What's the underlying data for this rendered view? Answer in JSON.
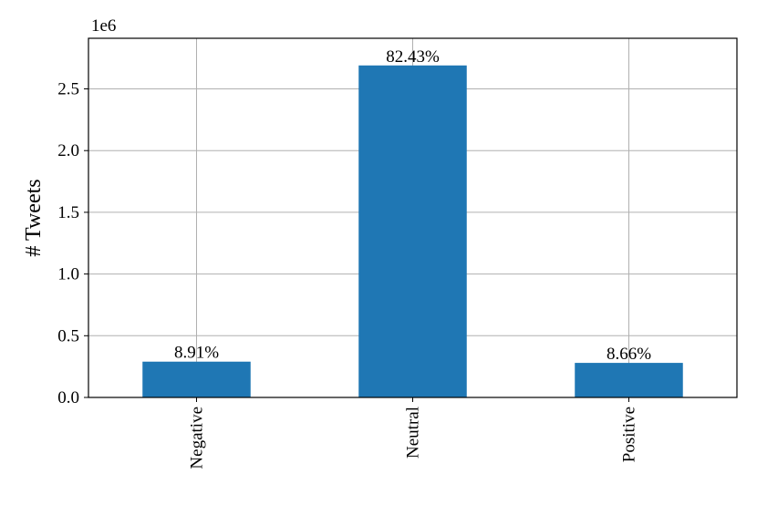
{
  "chart_data": {
    "type": "bar",
    "y_label": "# Tweets",
    "y_offset_label": "1e6",
    "categories": [
      "Negative",
      "Neutral",
      "Positive"
    ],
    "values": [
      0.29,
      2.69,
      0.28
    ],
    "percent_labels": [
      "8.91%",
      "82.43%",
      "8.66%"
    ],
    "color": "#1f77b4",
    "ylim": [
      0,
      2.91
    ],
    "yticks": [
      {
        "value": 0,
        "label": "0.0"
      },
      {
        "value": 0.5,
        "label": "0.5"
      },
      {
        "value": 1,
        "label": "1.0"
      },
      {
        "value": 1.5,
        "label": "1.5"
      },
      {
        "value": 2,
        "label": "2.0"
      },
      {
        "value": 2.5,
        "label": "2.5"
      }
    ],
    "grid": true
  }
}
